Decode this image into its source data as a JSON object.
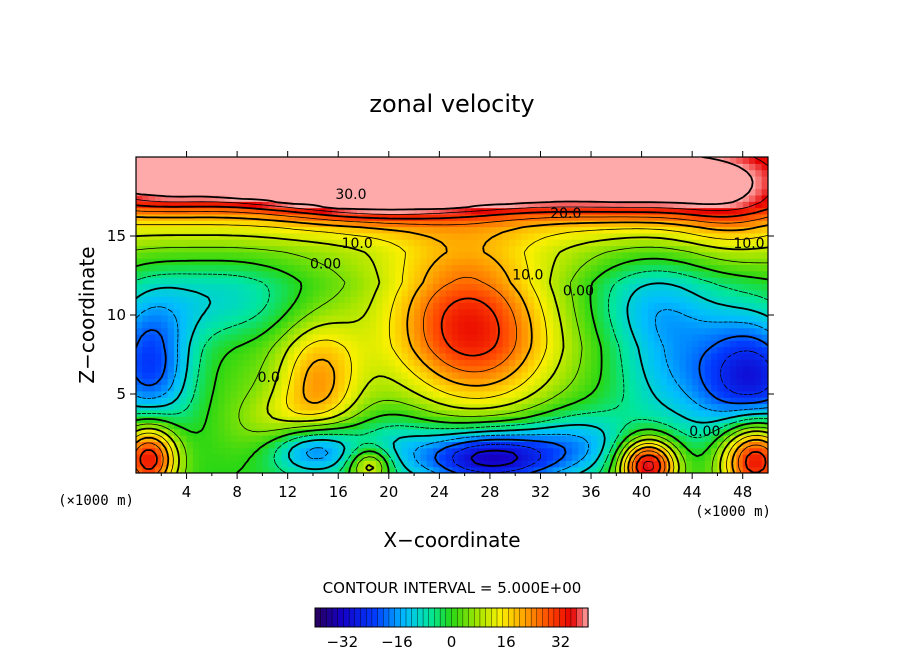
{
  "chart_data": {
    "type": "heatmap",
    "title": "zonal velocity",
    "xlabel": "X−coordinate",
    "ylabel": "Z−coordinate",
    "x_unit": "(×1000 m)",
    "z_unit": "(×1000 m)",
    "xlim": [
      0,
      50
    ],
    "zlim": [
      0,
      20
    ],
    "x_ticks": [
      4,
      8,
      12,
      16,
      20,
      24,
      28,
      32,
      36,
      40,
      44,
      48
    ],
    "x_tick_labels": [
      "4",
      "8",
      "12",
      "16",
      "20",
      "24",
      "28",
      "32",
      "36",
      "40",
      "44",
      "48"
    ],
    "z_ticks": [
      5,
      10,
      15
    ],
    "z_tick_labels": [
      "5",
      "10",
      "15"
    ],
    "contour_interval_text": "CONTOUR INTERVAL = 5.000E+00",
    "contour_labels": [
      {
        "text": "30.0",
        "x": 17,
        "z": 17.6
      },
      {
        "text": "20.0",
        "x": 34,
        "z": 16.4
      },
      {
        "text": "10.0",
        "x": 17.5,
        "z": 14.5
      },
      {
        "text": "0.00",
        "x": 15,
        "z": 13.2
      },
      {
        "text": "10.0",
        "x": 31,
        "z": 12.5
      },
      {
        "text": "0.00",
        "x": 35,
        "z": 11.5
      },
      {
        "text": "0.0",
        "x": 10.5,
        "z": 6
      },
      {
        "text": "0.00",
        "x": 45,
        "z": 2.6
      },
      {
        "text": "10.0",
        "x": 48.5,
        "z": 14.5
      }
    ],
    "colorbar": {
      "range": [
        -40,
        40
      ],
      "tick_values": [
        -32,
        -16,
        0,
        16,
        32
      ],
      "tick_labels": [
        "−32",
        "−16",
        "0",
        "16",
        "32"
      ]
    },
    "field_features": [
      {
        "x": 2,
        "z": 19,
        "value": 30,
        "sx": 4,
        "sz": 1.3
      },
      {
        "x": 10,
        "z": 19.3,
        "value": 36,
        "sx": 3.5,
        "sz": 1.2
      },
      {
        "x": 18,
        "z": 18.5,
        "value": 34,
        "sx": 5,
        "sz": 1.5
      },
      {
        "x": 26,
        "z": 19,
        "value": 32,
        "sx": 6,
        "sz": 1.3
      },
      {
        "x": 40,
        "z": 18.5,
        "value": 24,
        "sx": 7,
        "sz": 1.5
      },
      {
        "x": 47,
        "z": 16.5,
        "value": 8,
        "sx": 3,
        "sz": 2
      },
      {
        "x": 26,
        "z": 10,
        "value": 25,
        "sx": 4.5,
        "sz": 3.5
      },
      {
        "x": 28,
        "z": 7,
        "value": 8,
        "sx": 4,
        "sz": 3
      },
      {
        "x": 14.5,
        "z": 6,
        "value": 18,
        "sx": 2.3,
        "sz": 2.5
      },
      {
        "x": 12,
        "z": 3,
        "value": 10,
        "sx": 3,
        "sz": 1.5
      },
      {
        "x": 7,
        "z": 11,
        "value": -12,
        "sx": 4.5,
        "sz": 2
      },
      {
        "x": 1,
        "z": 7,
        "value": -26,
        "sx": 2.5,
        "sz": 3
      },
      {
        "x": 49,
        "z": 6,
        "value": -30,
        "sx": 3,
        "sz": 3
      },
      {
        "x": 42.5,
        "z": 7.5,
        "value": -16,
        "sx": 3.5,
        "sz": 3.5
      },
      {
        "x": 40,
        "z": 11,
        "value": -8,
        "sx": 3.5,
        "sz": 2
      },
      {
        "x": 28,
        "z": 1,
        "value": -34,
        "sx": 4,
        "sz": 1.3
      },
      {
        "x": 35,
        "z": 2,
        "value": -12,
        "sx": 3,
        "sz": 1.5
      },
      {
        "x": 14,
        "z": 1.6,
        "value": -24,
        "sx": 2.5,
        "sz": 1.2
      },
      {
        "x": 20.5,
        "z": 2,
        "value": -8,
        "sx": 2.5,
        "sz": 1.5
      },
      {
        "x": 1,
        "z": 1,
        "value": 36,
        "sx": 1.6,
        "sz": 1.6
      },
      {
        "x": 40.5,
        "z": 0.5,
        "value": 40,
        "sx": 1.6,
        "sz": 1.2
      },
      {
        "x": 49,
        "z": 1,
        "value": 40,
        "sx": 2,
        "sz": 1.8
      },
      {
        "x": 18.5,
        "z": 0.5,
        "value": 18,
        "sx": 1.2,
        "sz": 0.8
      }
    ]
  }
}
